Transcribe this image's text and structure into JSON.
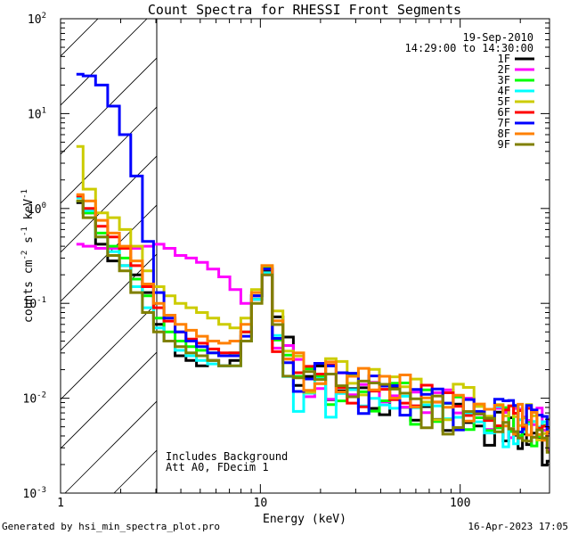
{
  "chart_data": {
    "type": "line",
    "title": "Count Spectra for RHESSI Front Segments",
    "xlabel": "Energy (keV)",
    "ylabel_parts": {
      "base": "counts cm",
      "sup1": "-2",
      "mid1": " s",
      "sup2": "-1",
      "mid2": " keV",
      "sup3": "-1"
    },
    "xscale": "log",
    "yscale": "log",
    "xlim": [
      1,
      280
    ],
    "ylim": [
      0.001,
      100
    ],
    "x_tick_labels": [
      {
        "value": 1,
        "label": "1"
      },
      {
        "value": 10,
        "label": "10"
      },
      {
        "value": 100,
        "label": "100"
      }
    ],
    "y_tick_labels": [
      {
        "value": 0.001,
        "base": "10",
        "exp": "-3"
      },
      {
        "value": 0.01,
        "base": "10",
        "exp": "-2"
      },
      {
        "value": 0.1,
        "base": "10",
        "exp": "-1"
      },
      {
        "value": 1,
        "base": "10",
        "exp": "0"
      },
      {
        "value": 10,
        "base": "10",
        "exp": "1"
      },
      {
        "value": 100,
        "base": "10",
        "exp": "2"
      }
    ],
    "date": "19-Sep-2010",
    "time_range": "14:29:00 to 14:30:00",
    "excluded_region_keV": [
      1,
      3
    ],
    "annotations": [
      "Includes Background",
      "Att A0, FDecim 1"
    ],
    "series": [
      {
        "name": "1F",
        "color": "#000000",
        "values": [
          1.15,
          0.9,
          0.42,
          0.28,
          0.25,
          0.2,
          0.13,
          0.06,
          0.04,
          0.028,
          0.025,
          0.022,
          0.025,
          0.022,
          0.025,
          0.04,
          0.11,
          0.22,
          0.05,
          0.03,
          0.022,
          0.018,
          0.015,
          0.014,
          0.013,
          0.012,
          0.011,
          0.01,
          0.01,
          0.009,
          0.0085,
          0.008,
          0.0078,
          0.0072,
          0.007,
          0.0068,
          0.0065,
          0.006,
          0.0055,
          0.005,
          0.0048,
          0.0045,
          0.0042,
          0.004,
          0.0038,
          0.0036,
          0.0034,
          0.0032,
          0.0031,
          0.003
        ]
      },
      {
        "name": "2F",
        "color": "#ff00ff",
        "values": [
          0.42,
          0.4,
          0.38,
          0.38,
          0.38,
          0.38,
          0.4,
          0.42,
          0.38,
          0.32,
          0.3,
          0.27,
          0.23,
          0.19,
          0.14,
          0.1,
          0.12,
          0.2,
          0.05,
          0.026,
          0.02,
          0.017,
          0.016,
          0.015,
          0.014,
          0.014,
          0.013,
          0.012,
          0.012,
          0.011,
          0.011,
          0.01,
          0.0095,
          0.009,
          0.0088,
          0.0085,
          0.008,
          0.0078,
          0.0075,
          0.0072,
          0.007,
          0.0068,
          0.0065,
          0.0062,
          0.006,
          0.0058,
          0.0055,
          0.0052,
          0.005,
          0.0048
        ]
      },
      {
        "name": "3F",
        "color": "#00ff00",
        "values": [
          1.2,
          0.9,
          0.55,
          0.4,
          0.3,
          0.18,
          0.12,
          0.07,
          0.05,
          0.04,
          0.035,
          0.032,
          0.03,
          0.028,
          0.03,
          0.05,
          0.12,
          0.24,
          0.045,
          0.022,
          0.018,
          0.016,
          0.015,
          0.014,
          0.013,
          0.012,
          0.012,
          0.011,
          0.011,
          0.01,
          0.0095,
          0.009,
          0.0085,
          0.008,
          0.0078,
          0.0075,
          0.0072,
          0.007,
          0.0068,
          0.0065,
          0.0062,
          0.006,
          0.0058,
          0.0055,
          0.0052,
          0.005,
          0.0048,
          0.0045,
          0.0043,
          0.0041
        ]
      },
      {
        "name": "4F",
        "color": "#00ffff",
        "values": [
          1.3,
          0.95,
          0.5,
          0.35,
          0.25,
          0.15,
          0.09,
          0.055,
          0.04,
          0.032,
          0.028,
          0.025,
          0.023,
          0.022,
          0.022,
          0.04,
          0.11,
          0.21,
          0.04,
          0.014,
          0.012,
          0.012,
          0.011,
          0.011,
          0.01,
          0.01,
          0.0095,
          0.009,
          0.009,
          0.0085,
          0.008,
          0.0078,
          0.0075,
          0.0072,
          0.007,
          0.0068,
          0.0065,
          0.0062,
          0.006,
          0.0058,
          0.0055,
          0.0052,
          0.005,
          0.0048,
          0.0046,
          0.0044,
          0.0042,
          0.004,
          0.0038,
          0.0036
        ]
      },
      {
        "name": "5F",
        "color": "#cccc00",
        "values": [
          4.5,
          1.6,
          0.9,
          0.8,
          0.6,
          0.4,
          0.22,
          0.15,
          0.12,
          0.1,
          0.09,
          0.08,
          0.07,
          0.06,
          0.055,
          0.07,
          0.14,
          0.25,
          0.06,
          0.028,
          0.022,
          0.019,
          0.018,
          0.017,
          0.016,
          0.015,
          0.014,
          0.013,
          0.013,
          0.012,
          0.012,
          0.011,
          0.011,
          0.01,
          0.0098,
          0.0095,
          0.009,
          0.0088,
          0.0085,
          0.008,
          0.0078,
          0.0075,
          0.0072,
          0.007,
          0.0068,
          0.0065,
          0.0062,
          0.006,
          0.0055,
          0.005
        ]
      },
      {
        "name": "6F",
        "color": "#ff0000",
        "values": [
          1.35,
          1.0,
          0.65,
          0.5,
          0.38,
          0.25,
          0.15,
          0.09,
          0.065,
          0.05,
          0.042,
          0.038,
          0.033,
          0.03,
          0.03,
          0.05,
          0.12,
          0.23,
          0.05,
          0.025,
          0.02,
          0.017,
          0.016,
          0.015,
          0.014,
          0.013,
          0.012,
          0.012,
          0.011,
          0.011,
          0.01,
          0.0095,
          0.009,
          0.0088,
          0.0085,
          0.008,
          0.0078,
          0.0075,
          0.0072,
          0.007,
          0.0068,
          0.0065,
          0.0062,
          0.006,
          0.0058,
          0.0055,
          0.0052,
          0.005,
          0.0048,
          0.0046
        ]
      },
      {
        "name": "7F",
        "color": "#0000ff",
        "values": [
          26,
          25,
          20,
          12,
          6,
          2.2,
          0.45,
          0.13,
          0.07,
          0.05,
          0.04,
          0.035,
          0.03,
          0.028,
          0.028,
          0.045,
          0.12,
          0.23,
          0.05,
          0.025,
          0.02,
          0.017,
          0.016,
          0.015,
          0.014,
          0.013,
          0.012,
          0.012,
          0.011,
          0.01,
          0.0098,
          0.0095,
          0.009,
          0.0085,
          0.0082,
          0.008,
          0.0078,
          0.0075,
          0.0072,
          0.007,
          0.0068,
          0.0065,
          0.0062,
          0.006,
          0.0058,
          0.0055,
          0.0052,
          0.005,
          0.0048,
          0.0046
        ]
      },
      {
        "name": "8F",
        "color": "#ff8000",
        "values": [
          1.4,
          1.2,
          0.75,
          0.55,
          0.4,
          0.28,
          0.16,
          0.1,
          0.075,
          0.06,
          0.052,
          0.045,
          0.04,
          0.038,
          0.04,
          0.06,
          0.13,
          0.25,
          0.06,
          0.03,
          0.024,
          0.02,
          0.018,
          0.017,
          0.016,
          0.015,
          0.014,
          0.014,
          0.013,
          0.012,
          0.012,
          0.011,
          0.011,
          0.01,
          0.0098,
          0.0095,
          0.009,
          0.0088,
          0.0085,
          0.008,
          0.0078,
          0.0075,
          0.0072,
          0.007,
          0.0068,
          0.0065,
          0.0062,
          0.006,
          0.0058,
          0.0055
        ]
      },
      {
        "name": "9F",
        "color": "#808000",
        "values": [
          1.2,
          0.8,
          0.5,
          0.32,
          0.22,
          0.13,
          0.08,
          0.05,
          0.04,
          0.035,
          0.03,
          0.028,
          0.025,
          0.022,
          0.022,
          0.04,
          0.1,
          0.2,
          0.045,
          0.022,
          0.018,
          0.015,
          0.014,
          0.013,
          0.012,
          0.012,
          0.011,
          0.011,
          0.01,
          0.0095,
          0.009,
          0.0085,
          0.008,
          0.0078,
          0.0075,
          0.0072,
          0.007,
          0.0068,
          0.0065,
          0.0062,
          0.006,
          0.0058,
          0.0055,
          0.0052,
          0.005,
          0.0048,
          0.0046,
          0.0044,
          0.0042,
          0.004
        ]
      }
    ],
    "energy_keV": [
      1.2,
      1.4,
      1.6,
      1.85,
      2.1,
      2.4,
      2.75,
      3.1,
      3.5,
      4.0,
      4.5,
      5.1,
      5.8,
      6.6,
      7.5,
      8.5,
      9.6,
      10.8,
      12.2,
      13.8,
      15.5,
      17.5,
      20,
      22.5,
      25.5,
      29,
      33,
      37,
      42,
      47,
      53,
      60,
      68,
      77,
      87,
      98,
      110,
      125,
      140,
      158,
      170,
      180,
      190,
      200,
      210,
      220,
      235,
      250,
      265,
      280
    ]
  },
  "footer": {
    "left": "Generated by hsi_min_spectra_plot.pro",
    "right": "16-Apr-2023 17:05"
  }
}
